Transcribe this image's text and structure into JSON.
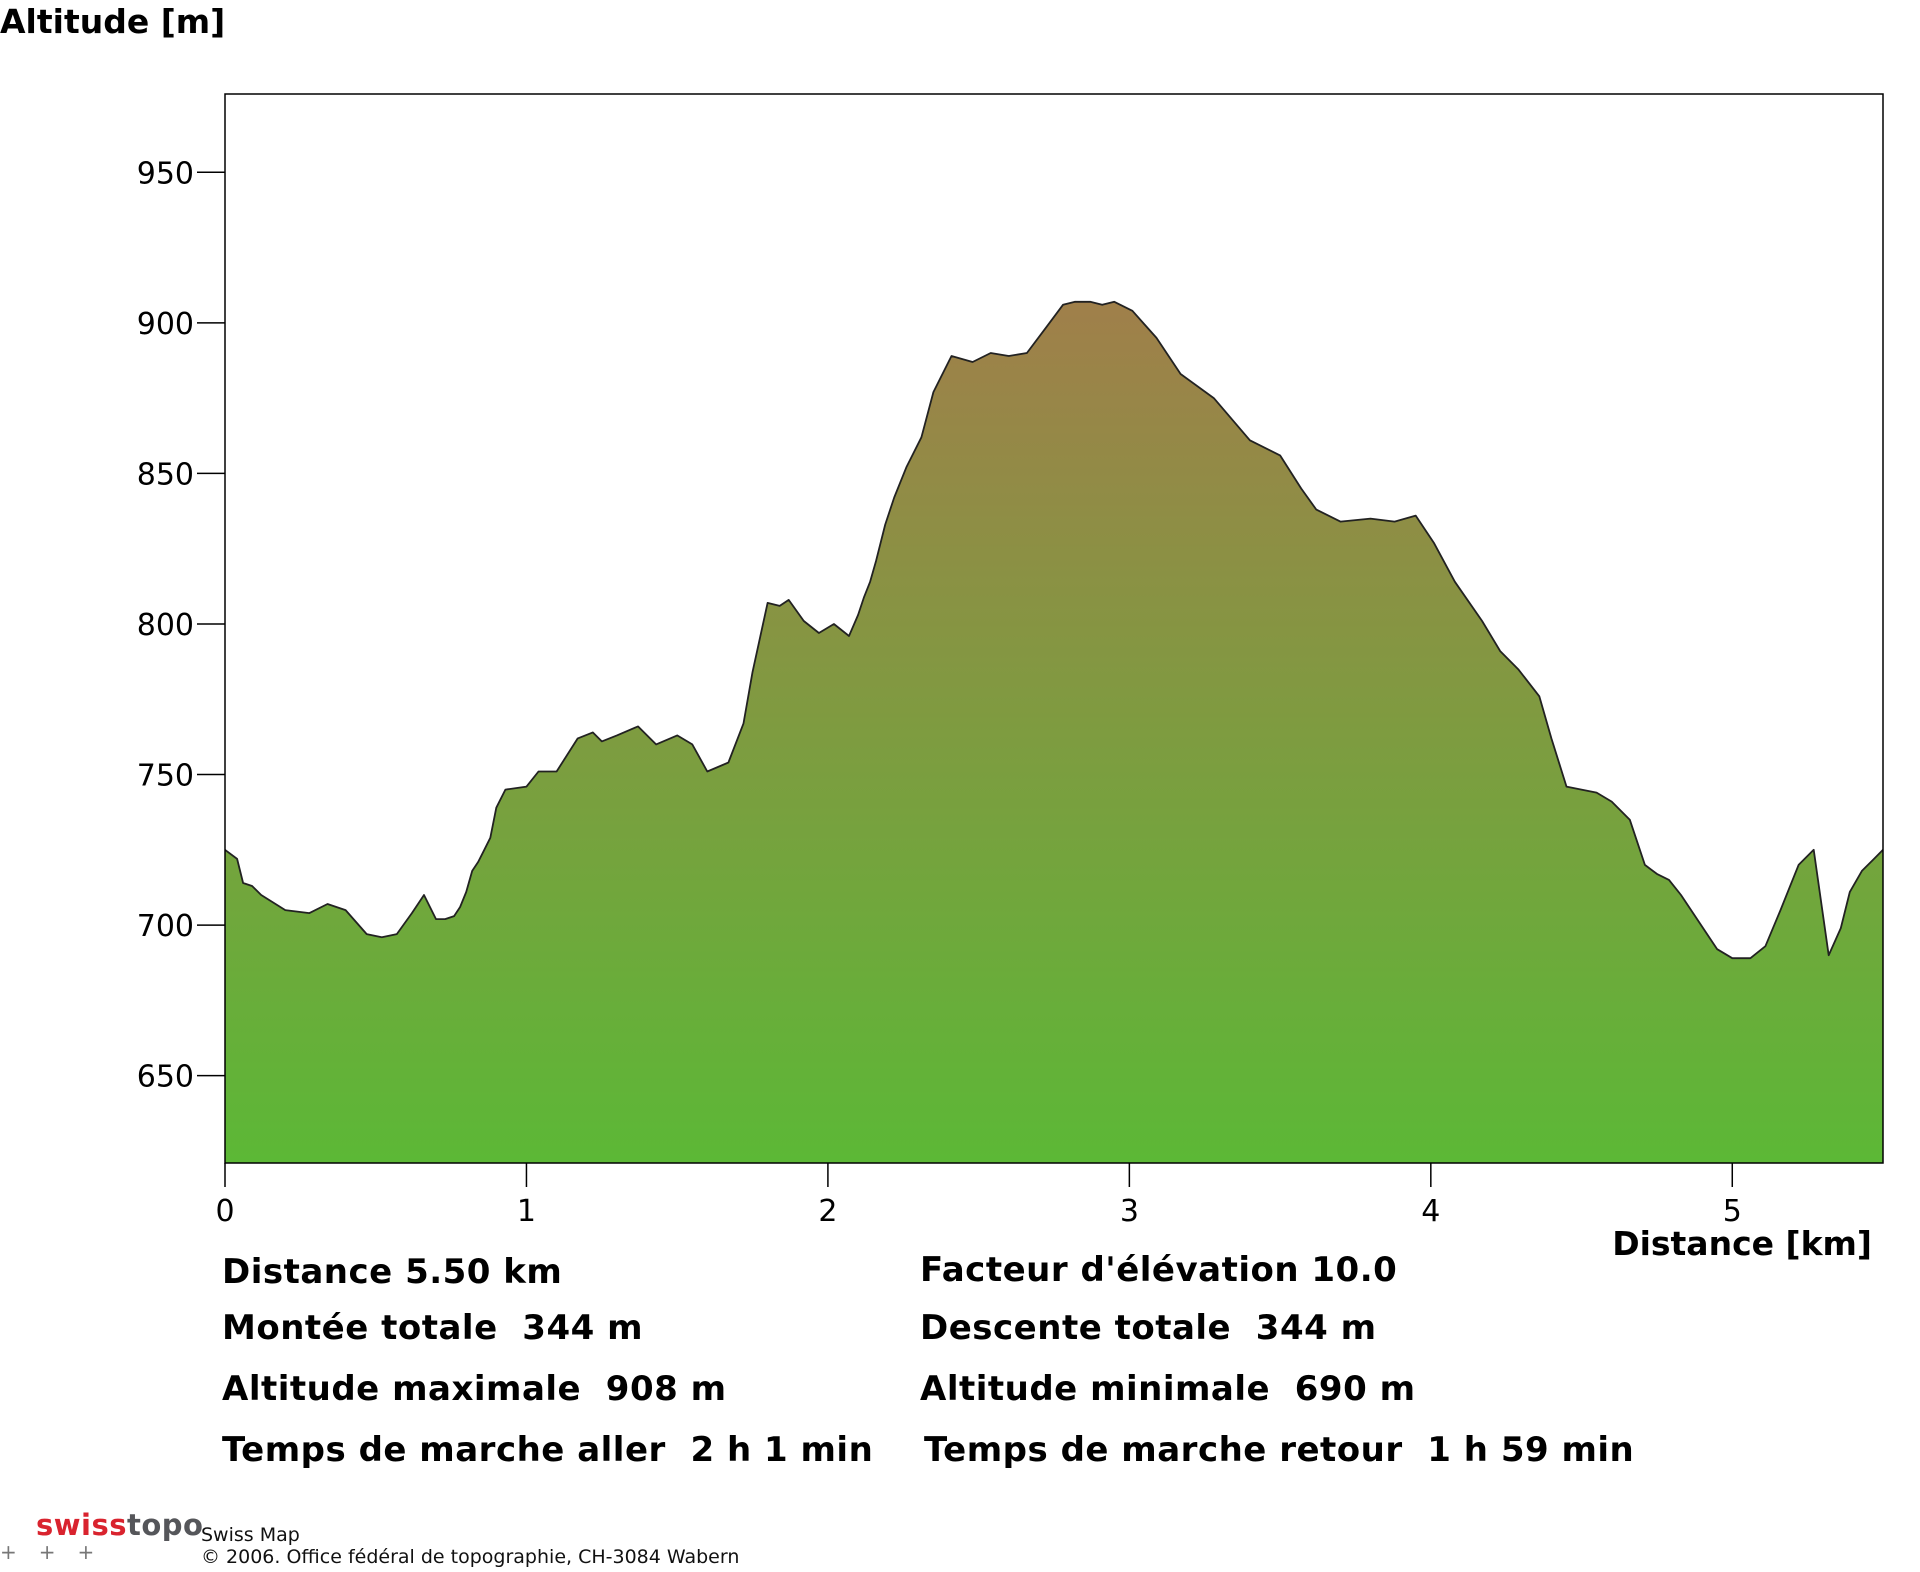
{
  "chart_data": {
    "type": "area",
    "ylabel": "Altitude [m]",
    "xlabel": "Distance [km]",
    "xlim": [
      0,
      5.5
    ],
    "ylim": [
      621,
      976
    ],
    "xticks": [
      0,
      1,
      2,
      3,
      4,
      5
    ],
    "yticks": [
      650,
      700,
      750,
      800,
      850,
      900,
      950
    ],
    "grid": false,
    "fill_gradient": {
      "bottom": "#5cb836",
      "top": "#a07f4a"
    },
    "line_color": "#222222",
    "series": [
      {
        "x": [
          0,
          0.04,
          0.06,
          0.09,
          0.12,
          0.2,
          0.28,
          0.34,
          0.4,
          0.47,
          0.52,
          0.57,
          0.62,
          0.66,
          0.7,
          0.73,
          0.76,
          0.78,
          0.8,
          0.82,
          0.84,
          0.86,
          0.88,
          0.9,
          0.93,
          1.0,
          1.04,
          1.1,
          1.17,
          1.22,
          1.25,
          1.3,
          1.37,
          1.43,
          1.5,
          1.55,
          1.6,
          1.67,
          1.72,
          1.75,
          1.8,
          1.84,
          1.87,
          1.92,
          1.97,
          2.02,
          2.07,
          2.1,
          2.12,
          2.14,
          2.16,
          2.19,
          2.22,
          2.26,
          2.31,
          2.35,
          2.41,
          2.48,
          2.54,
          2.6,
          2.66,
          2.72,
          2.78,
          2.82,
          2.87,
          2.91,
          2.95,
          3.01,
          3.09,
          3.17,
          3.28,
          3.4,
          3.5,
          3.57,
          3.62,
          3.7,
          3.8,
          3.88,
          3.95,
          4.01,
          4.08,
          4.17,
          4.23,
          4.29,
          4.36,
          4.4,
          4.45,
          4.5,
          4.55,
          4.6,
          4.66,
          4.71,
          4.75,
          4.79,
          4.83,
          4.87,
          4.91,
          4.95,
          5.0,
          5.06,
          5.11,
          5.16,
          5.22,
          5.27,
          5.32,
          5.36,
          5.39,
          5.43,
          5.47,
          5.5
        ],
        "y": [
          725,
          722,
          714,
          713,
          710,
          705,
          704,
          707,
          705,
          697,
          696,
          697,
          704,
          710,
          702,
          702,
          703,
          706,
          711,
          718,
          721,
          725,
          729,
          739,
          745,
          746,
          751,
          751,
          762,
          764,
          761,
          763,
          766,
          760,
          763,
          760,
          751,
          754,
          767,
          784,
          807,
          806,
          808,
          801,
          797,
          800,
          796,
          803,
          809,
          814,
          821,
          833,
          842,
          852,
          862,
          877,
          889,
          887,
          890,
          889,
          890,
          898,
          906,
          907,
          907,
          906,
          907,
          904,
          895,
          883,
          875,
          861,
          856,
          845,
          838,
          834,
          835,
          834,
          836,
          827,
          814,
          801,
          791,
          785,
          776,
          762,
          746,
          745,
          744,
          741,
          735,
          720,
          717,
          715,
          710,
          704,
          698,
          692,
          689,
          689,
          693,
          705,
          720,
          725,
          690,
          699,
          711,
          718,
          722,
          725
        ]
      }
    ]
  },
  "stats": {
    "distance": "Distance 5.50 km",
    "ascent": "Montée totale  344 m",
    "max_alt": "Altitude maximale  908 m",
    "time_out": "Temps de marche aller  2 h 1 min",
    "elev_factor": "Facteur d'élévation 10.0",
    "descent": "Descente totale  344 m",
    "min_alt": "Altitude minimale  690 m",
    "time_back": "Temps de marche retour  1 h 59 min"
  },
  "footer": {
    "brand_swiss": "swiss",
    "brand_topo": "topo",
    "product": "Swiss Map",
    "copyright": "© 2006. Office fédéral de topographie, CH-3084 Wabern"
  }
}
